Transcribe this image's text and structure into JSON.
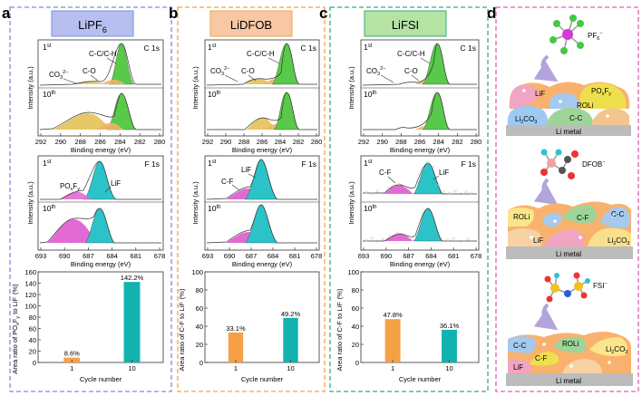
{
  "panel_letters": {
    "a": "a",
    "b": "b",
    "c": "c",
    "d": "d"
  },
  "colors": {
    "a_border": "#7a8fd6",
    "b_border": "#f0a448",
    "c_border": "#3aa87c",
    "d_border": "#e060b0",
    "a_title_bg": "#b7bff0",
    "b_title_bg": "#f8c8a4",
    "c_title_bg": "#b4e3a4",
    "green_fill": "#59c94a",
    "yellow_fill": "#e7c766",
    "orange_fill": "#f0b263",
    "cyan_fill": "#2bc3c8",
    "magenta_fill": "#e26ad4",
    "bar_orange": "#f6a046",
    "bar_teal": "#12b3ae"
  },
  "panels": [
    {
      "id": "a",
      "title_pre": "LiPF",
      "title_sub": "6",
      "c1s": {
        "label": "C 1s",
        "cycle1": "1",
        "cycle1_sup": "st",
        "cycle10": "10",
        "cycle10_sup": "th",
        "ann_cc": "C-C/C-H",
        "ann_co": "C-O",
        "ann_co3": "CO",
        "ann_co3_sub": "3",
        "ann_co3_sup": "2−"
      },
      "f1s": {
        "label": "F 1s",
        "ann1_pre": "PO",
        "ann1_sub1": "x",
        "ann1_mid": "F",
        "ann1_sub2": "y",
        "ann2": "LiF"
      },
      "c1s_ticks": [
        "292",
        "290",
        "288",
        "286",
        "284",
        "282",
        "280"
      ],
      "f1s_ticks": [
        "693",
        "690",
        "687",
        "684",
        "681",
        "678"
      ],
      "bar_ylabel_pre": "Area ratio of PO",
      "bar_ylabel_sub1": "x",
      "bar_ylabel_mid": "F",
      "bar_ylabel_sub2": "y",
      "bar_ylabel_post": " to LiF",
      "bar_ticks": [
        "0",
        "20",
        "40",
        "60",
        "80",
        "100",
        "120",
        "140",
        "160"
      ]
    },
    {
      "id": "b",
      "title_pre": "LiDFOB",
      "title_sub": "",
      "c1s": {
        "label": "C 1s",
        "cycle1": "1",
        "cycle1_sup": "st",
        "cycle10": "10",
        "cycle10_sup": "th",
        "ann_cc": "C-C/C-H",
        "ann_co": "C-O",
        "ann_co3": "CO",
        "ann_co3_sub": "3",
        "ann_co3_sup": "2−"
      },
      "f1s": {
        "label": "F 1s",
        "ann1": "C-F",
        "ann2": "LiF"
      },
      "c1s_ticks": [
        "292",
        "290",
        "288",
        "286",
        "284",
        "282",
        "280"
      ],
      "f1s_ticks": [
        "693",
        "690",
        "687",
        "684",
        "681",
        "678"
      ],
      "bar_ylabel": "Area ratio of C-F to LiF",
      "bar_ticks": [
        "0",
        "20",
        "40",
        "60",
        "80",
        "100"
      ]
    },
    {
      "id": "c",
      "title_pre": "LiFSI",
      "title_sub": "",
      "c1s": {
        "label": "C 1s",
        "cycle1": "1",
        "cycle1_sup": "st",
        "cycle10": "10",
        "cycle10_sup": "th",
        "ann_cc": "C-C/C-H",
        "ann_co": "C-O",
        "ann_co3": "CO",
        "ann_co3_sub": "3",
        "ann_co3_sup": "2−"
      },
      "f1s": {
        "label": "F 1s",
        "ann1": "C-F",
        "ann2": "LiF"
      },
      "c1s_ticks": [
        "292",
        "290",
        "288",
        "286",
        "284",
        "282",
        "280"
      ],
      "f1s_ticks": [
        "693",
        "690",
        "687",
        "684",
        "681",
        "678"
      ],
      "bar_ylabel": "Area ratio of C-F to LiF",
      "bar_ticks": [
        "0",
        "20",
        "40",
        "60",
        "80",
        "100"
      ]
    }
  ],
  "axis": {
    "intensity": "Intensity (a.u.)",
    "binding": "Binding energy (eV)",
    "cycle": "Cycle number",
    "pct": "(%)"
  },
  "chart_data": [
    {
      "type": "bar",
      "panel": "a",
      "categories": [
        "1",
        "10"
      ],
      "values": [
        8.6,
        142.2
      ],
      "labels": [
        "8.6%",
        "142.2%"
      ],
      "ylabel": "Area ratio of POxFy to LiF (%)",
      "xlabel": "Cycle number",
      "ylim": [
        0,
        160
      ]
    },
    {
      "type": "bar",
      "panel": "b",
      "categories": [
        "1",
        "10"
      ],
      "values": [
        33.1,
        49.2
      ],
      "labels": [
        "33.1%",
        "49.2%"
      ],
      "ylabel": "Area ratio of C-F to LiF (%)",
      "xlabel": "Cycle number",
      "ylim": [
        0,
        100
      ]
    },
    {
      "type": "bar",
      "panel": "c",
      "categories": [
        "1",
        "10"
      ],
      "values": [
        47.8,
        36.1
      ],
      "labels": [
        "47.8%",
        "36.1%"
      ],
      "ylabel": "Area ratio of C-F to LiF (%)",
      "xlabel": "Cycle number",
      "ylim": [
        0,
        100
      ]
    }
  ],
  "schematic": {
    "pf6": "PF",
    "pf6_sub": "6",
    "pf6_sup": "−",
    "dfob": "DFOB",
    "dfob_sup": "−",
    "fsi": "FSI",
    "fsi_sup": "−",
    "metal": "Li metal",
    "s1": {
      "lif": "LiF",
      "poxfy_pre": "PO",
      "poxfy_sub1": "x",
      "poxfy_mid": "F",
      "poxfy_sub2": "y",
      "roli": "ROLi",
      "li2co3_pre": "Li",
      "li2co3_sub1": "2",
      "li2co3_mid": "CO",
      "li2co3_sub2": "3",
      "cc": "C-C"
    },
    "s2": {
      "roli": "ROLi",
      "cf": "C-F",
      "cc": "C-C",
      "lif": "LiF",
      "li2co3_pre": "Li",
      "li2co3_sub1": "2",
      "li2co3_mid": "CO",
      "li2co3_sub2": "3"
    },
    "s3": {
      "cc": "C-C",
      "roli": "ROLi",
      "cf": "C-F",
      "lif": "LiF",
      "li2co3_pre": "Li",
      "li2co3_sub1": "2",
      "li2co3_mid": "CO",
      "li2co3_sub2": "3"
    }
  }
}
